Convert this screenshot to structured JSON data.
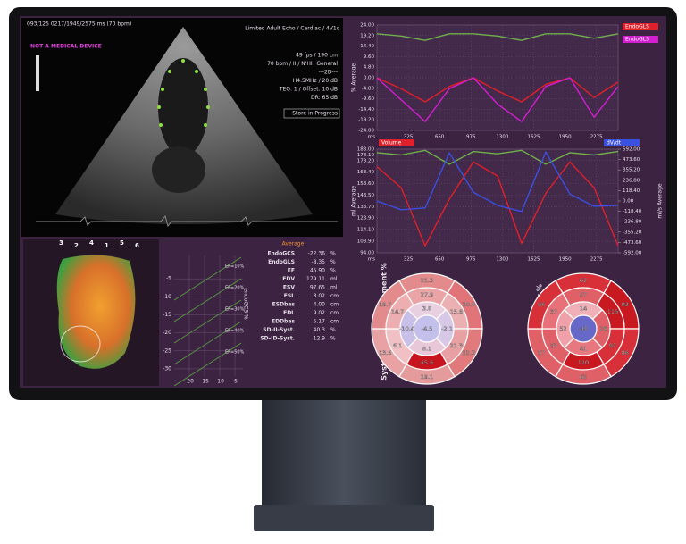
{
  "ultrasound": {
    "header_left": "093/125 0217/1949/2575 ms (70 bpm)",
    "header_right": "Limited Adult Echo / Cardiac / 4V1c",
    "warning": "NOT A MEDICAL DEVICE",
    "params": [
      "49 fps / 190 cm",
      "70 bpm / II / N'HH General",
      "---2D---",
      "H4.5MHz / 20 dB",
      "TEQ: 1 / Offset: 10 dB",
      "DR: 65 dB"
    ],
    "status": "Store in Progress"
  },
  "strain_chart": {
    "type": "line",
    "ylabel": "% Average",
    "xunit": "ms",
    "xlim": [
      0,
      2500
    ],
    "ylim": [
      -24,
      24
    ],
    "yticks": [
      {
        "value": 24,
        "label": "24.00"
      },
      {
        "value": 19.2,
        "label": "19.20"
      },
      {
        "value": 14.4,
        "label": "14.40"
      },
      {
        "value": 9.6,
        "label": "9.60"
      },
      {
        "value": 4.8,
        "label": "4.80"
      },
      {
        "value": 0,
        "label": "0.00"
      },
      {
        "value": -4.8,
        "label": "-4.80"
      },
      {
        "value": -9.6,
        "label": "-9.60"
      },
      {
        "value": -14.4,
        "label": "-14.40"
      },
      {
        "value": -19.2,
        "label": "-19.20"
      },
      {
        "value": -24,
        "label": "-24.00"
      }
    ],
    "xticks": [
      325,
      650,
      975,
      1300,
      1625,
      1950,
      2275
    ],
    "x": [
      0,
      250,
      500,
      750,
      1000,
      1250,
      1500,
      1750,
      2000,
      2250,
      2500
    ],
    "series": [
      {
        "color": "#6fb04a",
        "values": [
          20,
          19,
          17,
          20,
          20,
          19,
          17,
          20,
          20,
          18,
          20
        ]
      },
      {
        "name": "EndoGLS",
        "color": "#e0202a",
        "values": [
          0,
          -5,
          -11,
          -4,
          0,
          -6,
          -11,
          -3,
          0,
          -9,
          -2
        ]
      },
      {
        "name": "EndoGLS",
        "color": "#d21fd0",
        "values": [
          0,
          -10,
          -20,
          -5,
          0,
          -12,
          -20,
          -4,
          0,
          -18,
          -4
        ]
      }
    ]
  },
  "volume_chart": {
    "type": "line",
    "ylabel": "ml Average",
    "y2label": "ml/s Average",
    "xunit": "ms",
    "xlim": [
      0,
      2500
    ],
    "ylim": [
      94,
      183
    ],
    "y2lim": [
      -592,
      592
    ],
    "yticks": [
      {
        "value": 183,
        "label": "183.00"
      },
      {
        "value": 178.1,
        "label": "178.10"
      },
      {
        "value": 173.2,
        "label": "173.20"
      },
      {
        "value": 163.4,
        "label": "163.40"
      },
      {
        "value": 153.6,
        "label": "153.60"
      },
      {
        "value": 143.5,
        "label": "143.50"
      },
      {
        "value": 133.7,
        "label": "133.70"
      },
      {
        "value": 123.9,
        "label": "123.90"
      },
      {
        "value": 114.1,
        "label": "114.10"
      },
      {
        "value": 103.9,
        "label": "103.90"
      },
      {
        "value": 94,
        "label": "94.00"
      }
    ],
    "y2ticks": [
      {
        "value": 592,
        "label": "592.00"
      },
      {
        "value": 473.6,
        "label": "473.60"
      },
      {
        "value": 355.2,
        "label": "355.20"
      },
      {
        "value": 236.8,
        "label": "236.80"
      },
      {
        "value": 118.4,
        "label": "118.40"
      },
      {
        "value": 0,
        "label": "0.00"
      },
      {
        "value": -118.4,
        "label": "-118.40"
      },
      {
        "value": -236.8,
        "label": "-236.80"
      },
      {
        "value": -355.2,
        "label": "-355.20"
      },
      {
        "value": -473.6,
        "label": "-473.60"
      },
      {
        "value": -592,
        "label": "-592.00"
      }
    ],
    "xticks": [
      325,
      650,
      975,
      1300,
      1625,
      1950,
      2275
    ],
    "x": [
      0,
      250,
      500,
      750,
      1000,
      1250,
      1500,
      1750,
      2000,
      2250,
      2500
    ],
    "series": [
      {
        "color": "#6fb04a",
        "values": [
          180,
          178,
          182,
          170,
          181,
          179,
          182,
          170,
          180,
          178,
          181
        ]
      },
      {
        "name": "Volume",
        "color": "#e0202a",
        "values": [
          168,
          150,
          100,
          140,
          172,
          160,
          102,
          145,
          172,
          150,
          100
        ]
      },
      {
        "name": "dV/dt",
        "color": "#3a50e0",
        "axis": "y2",
        "values": [
          0,
          -100,
          -80,
          550,
          100,
          -50,
          -120,
          560,
          80,
          -60,
          -50
        ]
      }
    ]
  },
  "heart_model": {
    "segments": [
      "3",
      "2",
      "4",
      "1",
      "5",
      "6"
    ]
  },
  "ef_plot": {
    "ylabel": "endoGCS %",
    "xlim": [
      -25,
      0
    ],
    "ylim": [
      0,
      -32
    ],
    "xticks": [
      -20,
      -15,
      -10,
      -5
    ],
    "yticks": [
      -5,
      -10,
      -15,
      -20,
      -25,
      -30
    ],
    "lines": [
      "EF=10%",
      "EF=20%",
      "EF=30%",
      "EF=40%",
      "EF=50%"
    ]
  },
  "measurements": {
    "heading": "Average",
    "rows": [
      [
        "EndoGCS",
        "-22.36",
        "%"
      ],
      [
        "EndoGLS",
        "-8.35",
        "%"
      ],
      [
        "EF",
        "45.90",
        "%"
      ],
      [
        "EDV",
        "179.11",
        "ml"
      ],
      [
        "ESV",
        "97.65",
        "ml"
      ],
      [
        "ESL",
        "8.02",
        "cm"
      ],
      [
        "ESDbas",
        "4.00",
        "cm"
      ],
      [
        "EDL",
        "9.02",
        "cm"
      ],
      [
        "EDDbas",
        "5.17",
        "cm"
      ],
      [
        "SD-II-Syst.",
        "40.3",
        "%"
      ],
      [
        "SD-ID-Syst.",
        "12.9",
        "%"
      ]
    ]
  },
  "bullseye_left": {
    "title": "Syst. Inward Displacement %",
    "basal": [
      "21.3",
      "20.8",
      "22.3",
      "19.1",
      "13.5",
      "19.7"
    ],
    "mid": [
      "27.9",
      "15.6",
      "21.3",
      "45.6",
      "6.1",
      "14.7"
    ],
    "apical": [
      "3.8",
      "-2.1",
      "8.1",
      "-10.4"
    ],
    "apex": "-4.5"
  },
  "bullseye_right": {
    "title": "Syst. Inward Idx %",
    "basal": [
      "62",
      "93",
      "86",
      "62",
      "57",
      "66"
    ],
    "mid": [
      "57",
      "116",
      "91",
      "120",
      "52",
      "37"
    ],
    "apical": [
      "14",
      "26",
      "41",
      "52"
    ],
    "apex": "-40"
  }
}
